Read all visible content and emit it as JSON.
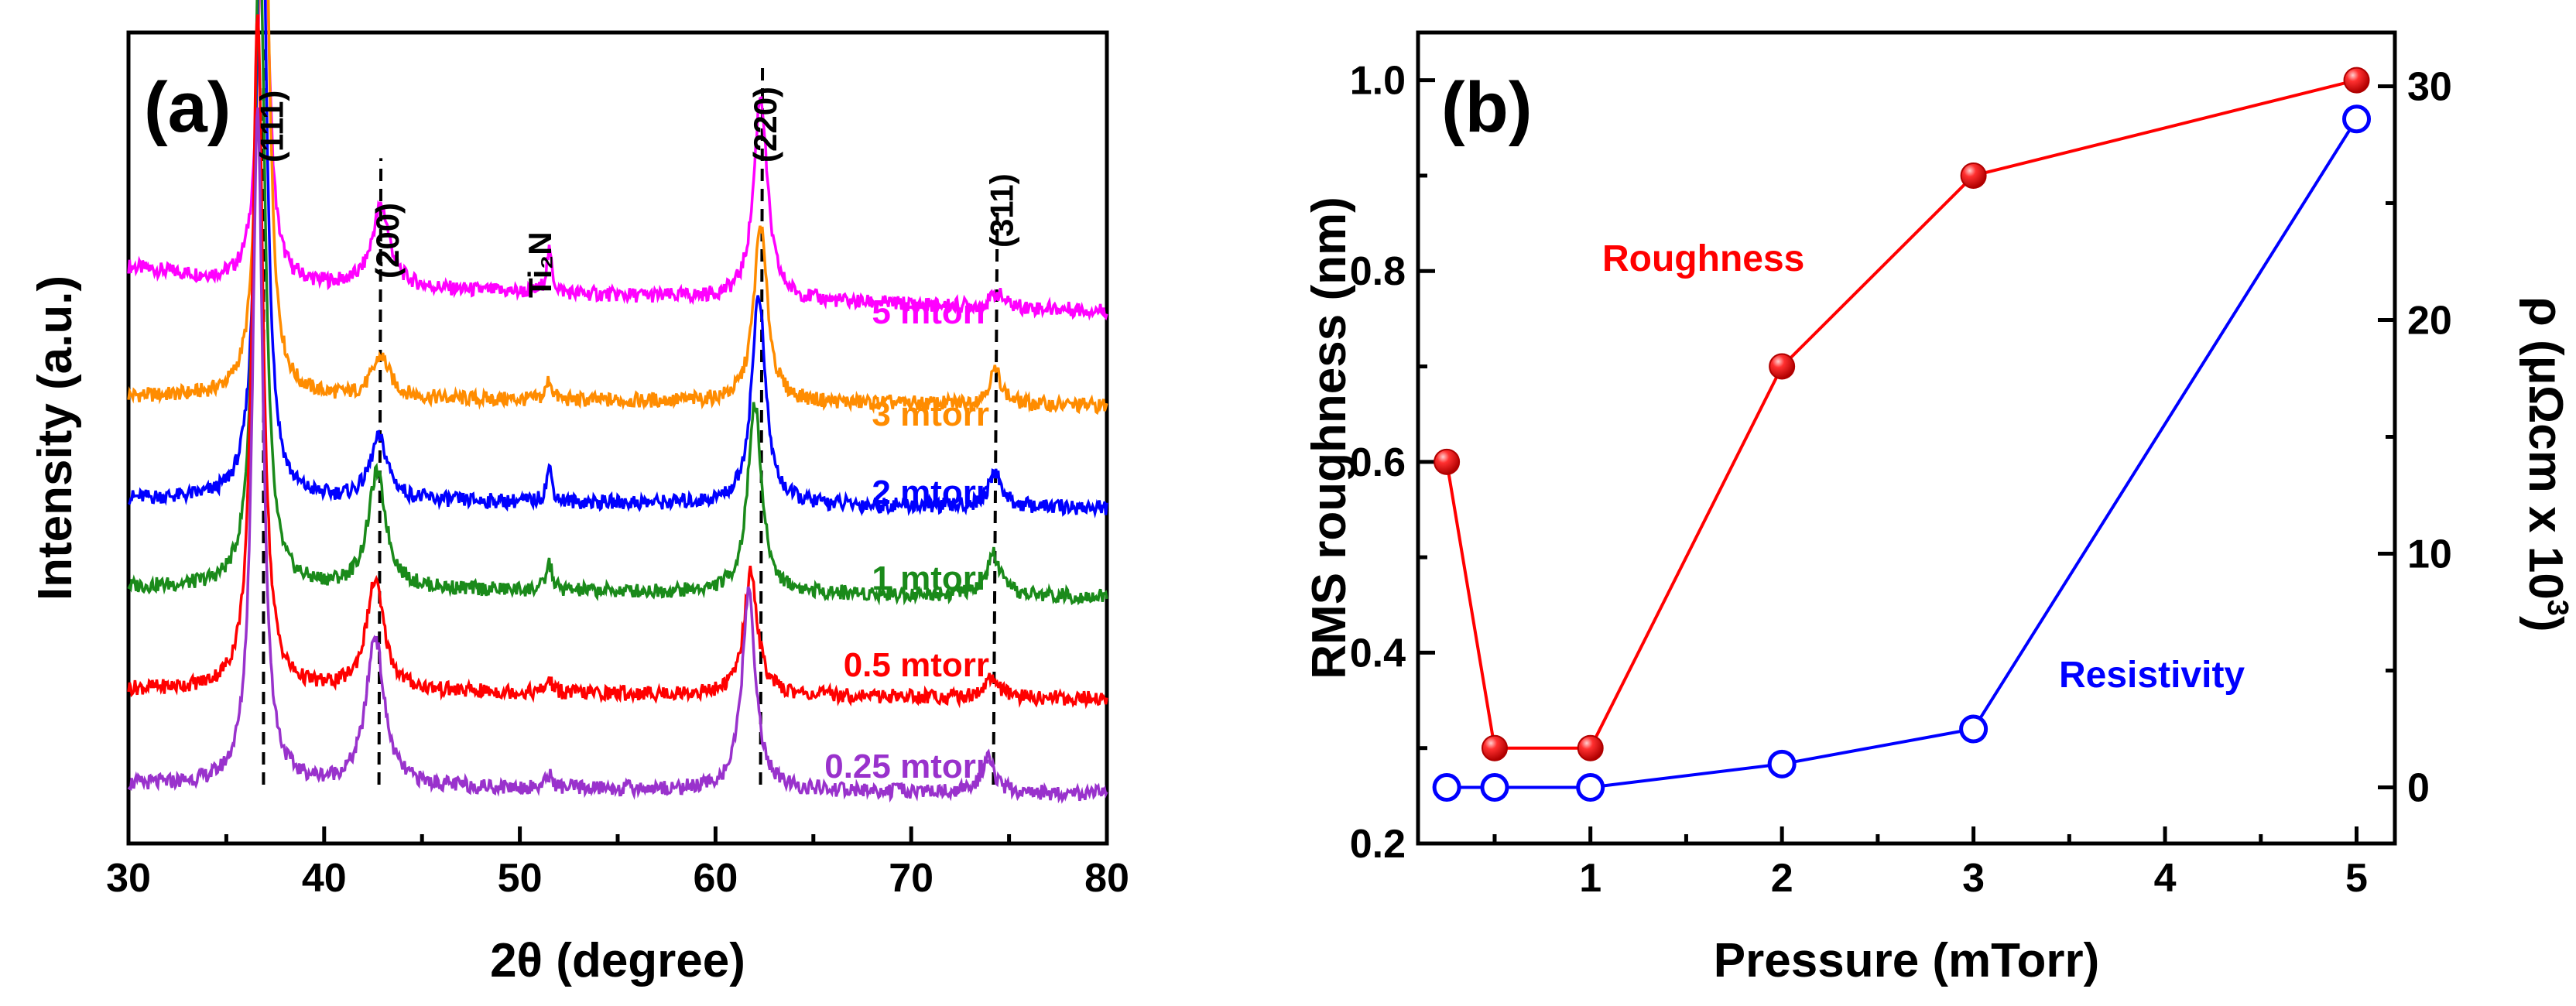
{
  "chart_data": [
    {
      "panel": "(a)",
      "type": "line",
      "xlabel": "2θ (degree)",
      "ylabel": "Intensity (a.u.)",
      "xlim": [
        30,
        80
      ],
      "xticks": [
        "30",
        "40",
        "50",
        "60",
        "70",
        "80"
      ],
      "peaks": [
        {
          "label": "(111)",
          "x": 36.9
        },
        {
          "label": "(200)",
          "x": 42.9
        },
        {
          "label": "Ti₂N",
          "x": 51.5
        },
        {
          "label": "(220)",
          "x": 62.3
        },
        {
          "label": "(311)",
          "x": 74.3
        }
      ],
      "series": [
        {
          "name": "5 mtorr",
          "color": "#ff00ff",
          "baseline": 0.79,
          "amp": [
            0.62,
            0.12,
            0.06,
            0.3,
            0.02
          ],
          "pos": [
            36.9,
            42.9,
            51.5,
            62.3,
            74.4
          ]
        },
        {
          "name": "3 mtorr",
          "color": "#ff8c00",
          "baseline": 0.62,
          "amp": [
            0.94,
            0.06,
            0.03,
            0.26,
            0.05
          ],
          "pos": [
            36.9,
            42.9,
            51.5,
            62.3,
            74.3
          ]
        },
        {
          "name": "2 mtorr",
          "color": "#0000ff",
          "baseline": 0.47,
          "amp": [
            0.98,
            0.09,
            0.05,
            0.31,
            0.05
          ],
          "pos": [
            36.8,
            42.8,
            51.5,
            62.2,
            74.3
          ]
        },
        {
          "name": "1 mtorr",
          "color": "#1a8a1a",
          "baseline": 0.34,
          "amp": [
            1.0,
            0.17,
            0.04,
            0.28,
            0.06
          ],
          "pos": [
            36.7,
            42.7,
            51.5,
            62.0,
            74.2
          ]
        },
        {
          "name": "0.5 mtorr",
          "color": "#ff0000",
          "baseline": 0.19,
          "amp": [
            1.0,
            0.16,
            0.02,
            0.18,
            0.03
          ],
          "pos": [
            36.6,
            42.6,
            51.5,
            61.8,
            74.1
          ]
        },
        {
          "name": "0.25 mtorr",
          "color": "#9932cc",
          "baseline": 0.05,
          "amp": [
            1.0,
            0.22,
            0.02,
            0.29,
            0.05
          ],
          "pos": [
            36.6,
            42.6,
            51.5,
            61.7,
            73.9
          ]
        }
      ]
    },
    {
      "panel": "(b)",
      "type": "line",
      "xlabel": "Pressure (mTorr)",
      "ylabel": "RMS roughness (nm)",
      "y2label_main": "ρ (μΩcm x 10",
      "y2label_exp": "3",
      "y2label_close": ")",
      "xlim": [
        0.1,
        5.2
      ],
      "ylim": [
        0.2,
        1.05
      ],
      "y2lim": [
        -2.4,
        32.3
      ],
      "xticks": [
        "1",
        "2",
        "3",
        "4",
        "5"
      ],
      "yticks": [
        "0.2",
        "0.4",
        "0.6",
        "0.8",
        "1.0"
      ],
      "y2ticks": [
        "0",
        "10",
        "20",
        "30"
      ],
      "x": [
        0.25,
        0.5,
        1,
        2,
        3,
        5
      ],
      "series": [
        {
          "name": "Roughness",
          "axis": "left",
          "color": "#ff0000",
          "values": [
            0.6,
            0.3,
            0.3,
            0.7,
            0.9,
            1.0
          ]
        },
        {
          "name": "Resistivity",
          "axis": "right",
          "color": "#0000ff",
          "values": [
            0.0,
            0.0,
            0.0,
            1.0,
            2.5,
            28.6
          ]
        }
      ]
    }
  ]
}
